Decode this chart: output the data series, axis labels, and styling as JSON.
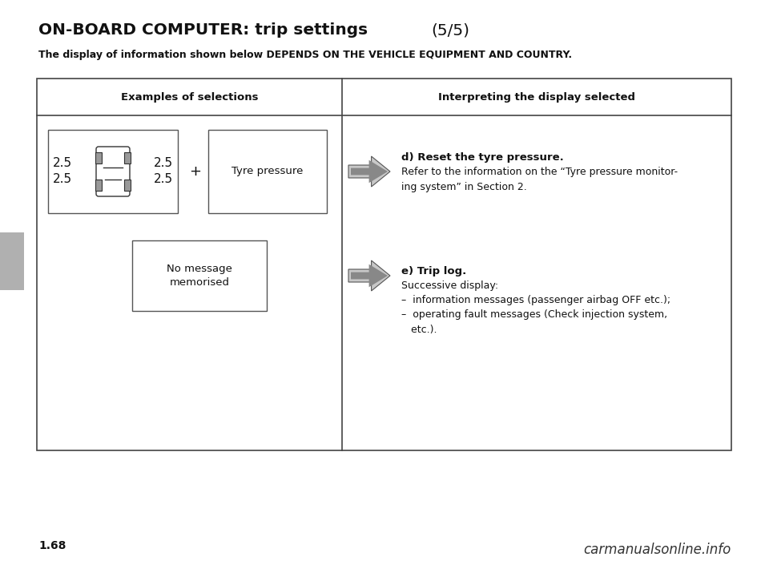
{
  "title_bold": "ON-BOARD COMPUTER: trip settings",
  "title_suffix": "(5/5)",
  "subtitle": "The display of information shown below DEPENDS ON THE VEHICLE EQUIPMENT AND COUNTRY.",
  "col1_header": "Examples of selections",
  "col2_header": "Interpreting the display selected",
  "page_number": "1.68",
  "watermark": "carmanualsonline.info",
  "row1_d_title": "d) Reset the tyre pressure.",
  "row1_d_body": "Refer to the information on the “Tyre pressure monitor-\ning system” in Section 2.",
  "row2_e_title": "e) Trip log.",
  "row2_e_sub": "Successive display:",
  "row2_e_b1": "–  information messages (passenger airbag OFF etc.);",
  "row2_e_b2": "–  operating fault messages (Check injection system,\n   etc.).",
  "tyre_label": "Tyre pressure",
  "no_msg_label": "No message\nmemorised",
  "nums": [
    "2.5",
    "2.5",
    "2.5",
    "2.5"
  ],
  "plus": "+",
  "bg": "#ffffff",
  "text_color": "#111111",
  "border_color": "#444444",
  "gray_tab_color": "#b0b0b0",
  "arrow_fill": "#aaaaaa",
  "arrow_edge": "#555555",
  "arrow_inner": "#666666"
}
